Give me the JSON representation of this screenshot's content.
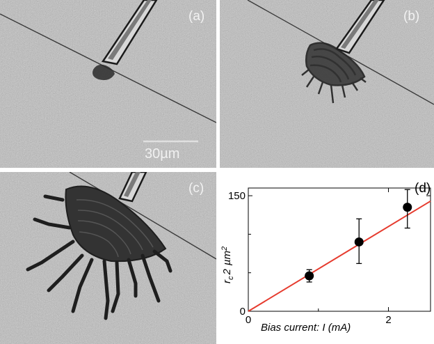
{
  "panels": {
    "a": {
      "label": "(a)",
      "scale_bar": "30µm"
    },
    "b": {
      "label": "(b)"
    },
    "c": {
      "label": "(c)"
    }
  },
  "chart_data": {
    "type": "scatter",
    "panel_label": "(d)",
    "title": "",
    "xlabel": "Bias current: I (mA)",
    "ylabel": "r_c^2 µm^2",
    "ylabel_parts": {
      "r": "r",
      "sub": "c",
      "two": "2",
      "unit": "µm",
      "sup": "2"
    },
    "xlim": [
      0,
      2.6
    ],
    "ylim": [
      0,
      160
    ],
    "x_ticks": [
      0,
      2
    ],
    "y_ticks": [
      0,
      150
    ],
    "x_tick_labels": [
      "0",
      "2"
    ],
    "y_tick_labels": [
      "0",
      "150"
    ],
    "series": [
      {
        "x": [
          0.87,
          1.58,
          2.27
        ],
        "y": [
          46,
          90,
          135
        ],
        "err_low": [
          38,
          62,
          108
        ],
        "err_high": [
          54,
          120,
          158
        ]
      }
    ],
    "fit_line": {
      "x": [
        0,
        2.6
      ],
      "y": [
        0,
        143
      ],
      "color": "#e63b2e"
    },
    "grid": false,
    "legend": "none"
  }
}
